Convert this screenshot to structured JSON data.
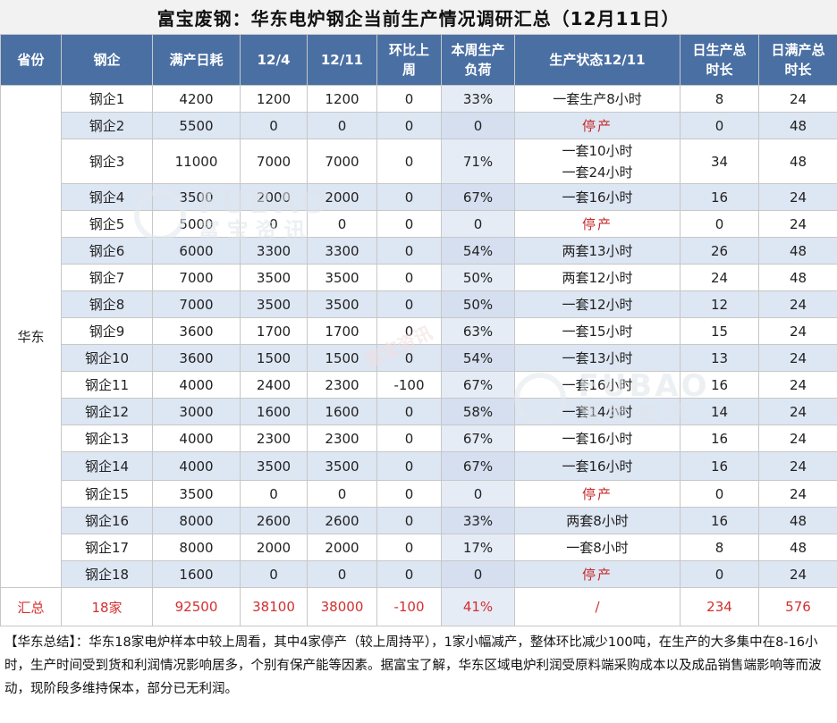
{
  "title": "富宝废钢：华东电炉钢企当前生产情况调研汇总（12月11日）",
  "headers": [
    "省份",
    "钢企",
    "满产日耗",
    "12/4",
    "12/11",
    "环比上周",
    "本周生产负荷",
    "生产状态12/11",
    "日生产总时长",
    "日满产总时长"
  ],
  "province": "华东",
  "rows": [
    {
      "name": "钢企1",
      "capacity": "4200",
      "w1": "1200",
      "w2": "1200",
      "change": "0",
      "load": "33%",
      "status": [
        "一套生产8小时"
      ],
      "hours": "8",
      "full_hours": "24"
    },
    {
      "name": "钢企2",
      "capacity": "5500",
      "w1": "0",
      "w2": "0",
      "change": "0",
      "load": "0",
      "status": [
        "停产"
      ],
      "stopped": true,
      "hours": "0",
      "full_hours": "48"
    },
    {
      "name": "钢企3",
      "capacity": "11000",
      "w1": "7000",
      "w2": "7000",
      "change": "0",
      "load": "71%",
      "status": [
        "一套10小时",
        "一套24小时"
      ],
      "hours": "34",
      "full_hours": "48"
    },
    {
      "name": "钢企4",
      "capacity": "3500",
      "w1": "2000",
      "w2": "2000",
      "change": "0",
      "load": "67%",
      "status": [
        "一套16小时"
      ],
      "hours": "16",
      "full_hours": "24"
    },
    {
      "name": "钢企5",
      "capacity": "5000",
      "w1": "0",
      "w2": "0",
      "change": "0",
      "load": "0",
      "status": [
        "停产"
      ],
      "stopped": true,
      "hours": "0",
      "full_hours": "24"
    },
    {
      "name": "钢企6",
      "capacity": "6000",
      "w1": "3300",
      "w2": "3300",
      "change": "0",
      "load": "54%",
      "status": [
        "两套13小时"
      ],
      "hours": "26",
      "full_hours": "48"
    },
    {
      "name": "钢企7",
      "capacity": "7000",
      "w1": "3500",
      "w2": "3500",
      "change": "0",
      "load": "50%",
      "status": [
        "两套12小时"
      ],
      "hours": "24",
      "full_hours": "48"
    },
    {
      "name": "钢企8",
      "capacity": "7000",
      "w1": "3500",
      "w2": "3500",
      "change": "0",
      "load": "50%",
      "status": [
        "一套12小时"
      ],
      "hours": "12",
      "full_hours": "24"
    },
    {
      "name": "钢企9",
      "capacity": "3600",
      "w1": "1700",
      "w2": "1700",
      "change": "0",
      "load": "63%",
      "status": [
        "一套15小时"
      ],
      "hours": "15",
      "full_hours": "24"
    },
    {
      "name": "钢企10",
      "capacity": "3600",
      "w1": "1500",
      "w2": "1500",
      "change": "0",
      "load": "54%",
      "status": [
        "一套13小时"
      ],
      "hours": "13",
      "full_hours": "24"
    },
    {
      "name": "钢企11",
      "capacity": "4000",
      "w1": "2400",
      "w2": "2300",
      "change": "-100",
      "load": "67%",
      "status": [
        "一套16小时"
      ],
      "hours": "16",
      "full_hours": "24"
    },
    {
      "name": "钢企12",
      "capacity": "3000",
      "w1": "1600",
      "w2": "1600",
      "change": "0",
      "load": "58%",
      "status": [
        "一套14小时"
      ],
      "hours": "14",
      "full_hours": "24"
    },
    {
      "name": "钢企13",
      "capacity": "4000",
      "w1": "2300",
      "w2": "2300",
      "change": "0",
      "load": "67%",
      "status": [
        "一套16小时"
      ],
      "hours": "16",
      "full_hours": "24"
    },
    {
      "name": "钢企14",
      "capacity": "4000",
      "w1": "3500",
      "w2": "3500",
      "change": "0",
      "load": "67%",
      "status": [
        "一套16小时"
      ],
      "hours": "16",
      "full_hours": "24"
    },
    {
      "name": "钢企15",
      "capacity": "3500",
      "w1": "0",
      "w2": "0",
      "change": "0",
      "load": "0",
      "status": [
        "停产"
      ],
      "stopped": true,
      "hours": "0",
      "full_hours": "24"
    },
    {
      "name": "钢企16",
      "capacity": "8000",
      "w1": "2600",
      "w2": "2600",
      "change": "0",
      "load": "33%",
      "status": [
        "两套8小时"
      ],
      "hours": "16",
      "full_hours": "48"
    },
    {
      "name": "钢企17",
      "capacity": "8000",
      "w1": "2000",
      "w2": "2000",
      "change": "0",
      "load": "17%",
      "status": [
        "一套8小时"
      ],
      "hours": "8",
      "full_hours": "48"
    },
    {
      "name": "钢企18",
      "capacity": "1600",
      "w1": "0",
      "w2": "0",
      "change": "0",
      "load": "0",
      "status": [
        "停产"
      ],
      "stopped": true,
      "hours": "0",
      "full_hours": "24"
    }
  ],
  "total": {
    "label": "汇总",
    "count": "18家",
    "capacity": "92500",
    "w1": "38100",
    "w2": "38000",
    "change": "-100",
    "load": "41%",
    "status": "/",
    "hours": "234",
    "full_hours": "576"
  },
  "summary": "【华东总结】：华东18家电炉样本中较上周看，其中4家停产（较上周持平），1家小幅减产，整体环比减少100吨，在生产的大多集中在8-16小时，生产时间受到货和利润情况影响居多，个别有保产能等因素。据富宝了解，华东区域电炉利润受原料端采购成本以及成品销售端影响等而波动，现阶段多维持保本，部分已无利润。",
  "watermark": {
    "en": "FUBAO",
    "cn": "富宝资讯"
  },
  "colors": {
    "header_bg": "#4a6fa3",
    "row_alt": "#dde6f3",
    "stop_text": "#c62828",
    "total_text": "#d32f2f"
  }
}
